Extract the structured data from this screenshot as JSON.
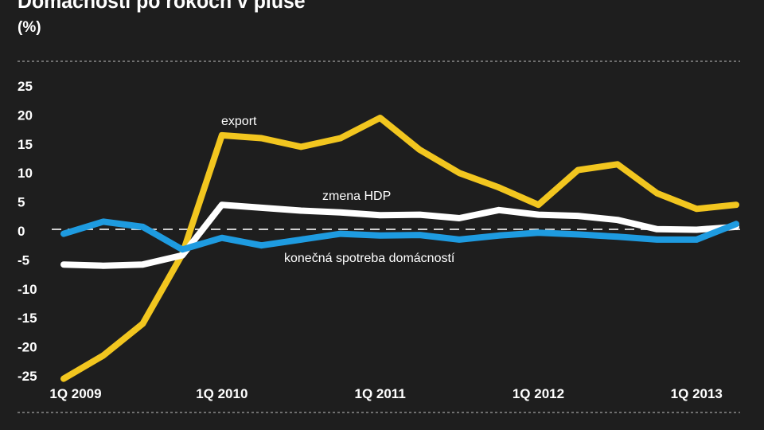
{
  "header": {
    "title": "Domácnosti po rokoch v pluse",
    "unit": "(%)"
  },
  "footer": {
    "source": ""
  },
  "colors": {
    "background": "#1e1e1e",
    "export": "#f2c61f",
    "hdp": "#ffffff",
    "spotreba": "#1e9be0",
    "divider": "#8a8a8a"
  },
  "chart_data": {
    "type": "line",
    "ylim": [
      -25,
      25
    ],
    "yticks": [
      25,
      20,
      15,
      10,
      5,
      0,
      -5,
      -10,
      -15,
      -20,
      -25
    ],
    "x_tick_labels": [
      {
        "label": "1Q 2009",
        "index": 0
      },
      {
        "label": "1Q 2010",
        "index": 4
      },
      {
        "label": "1Q 2011",
        "index": 8
      },
      {
        "label": "1Q 2012",
        "index": 12
      },
      {
        "label": "1Q 2013",
        "index": 16
      }
    ],
    "x": [
      "1Q 2009",
      "2Q 2009",
      "3Q 2009",
      "4Q 2009",
      "1Q 2010",
      "2Q 2010",
      "3Q 2010",
      "4Q 2010",
      "1Q 2011",
      "2Q 2011",
      "3Q 2011",
      "4Q 2011",
      "1Q 2012",
      "2Q 2012",
      "3Q 2012",
      "4Q 2012",
      "1Q 2013",
      "2Q 2013"
    ],
    "series": [
      {
        "name": "export",
        "color": "#f2c61f",
        "values": [
          -25.5,
          -21.5,
          -16.0,
          -4.0,
          16.5,
          16.0,
          14.5,
          16.0,
          19.5,
          14.0,
          10.0,
          7.5,
          4.5,
          10.5,
          11.5,
          6.5,
          3.8,
          4.5
        ]
      },
      {
        "name": "zmena HDP",
        "color": "#ffffff",
        "values": [
          -5.8,
          -6.0,
          -5.8,
          -4.2,
          4.5,
          4.0,
          3.5,
          3.2,
          2.7,
          2.8,
          2.2,
          3.6,
          2.8,
          2.6,
          1.9,
          0.3,
          0.2,
          0.7
        ]
      },
      {
        "name": "konečná spotreba domácností",
        "color": "#1e9be0",
        "values": [
          -0.5,
          1.6,
          0.7,
          -3.2,
          -1.2,
          -2.5,
          -1.5,
          -0.5,
          -0.8,
          -0.7,
          -1.5,
          -0.8,
          -0.3,
          -0.6,
          -1.0,
          -1.5,
          -1.5,
          1.2
        ]
      }
    ]
  }
}
